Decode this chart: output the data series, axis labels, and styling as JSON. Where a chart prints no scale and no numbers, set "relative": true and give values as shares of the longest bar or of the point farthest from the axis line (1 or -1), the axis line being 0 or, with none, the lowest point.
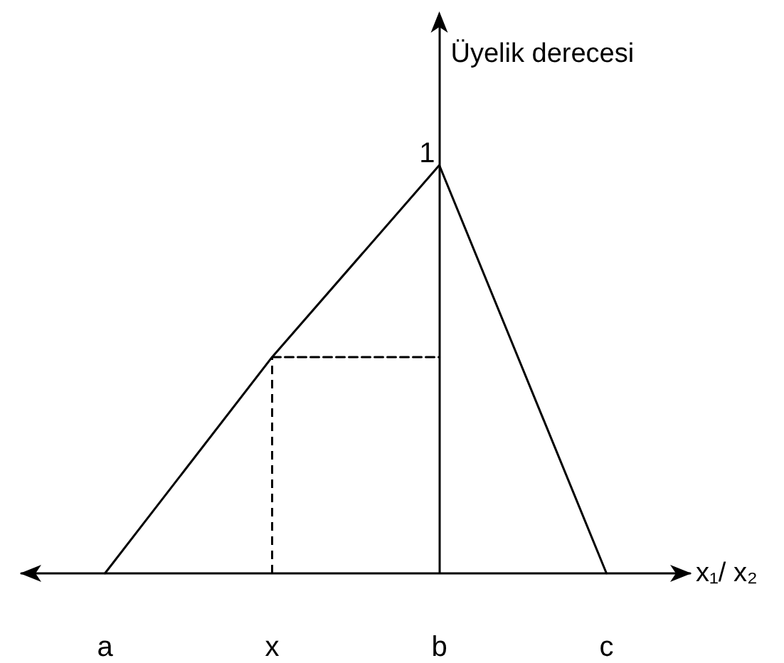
{
  "chart_data": {
    "type": "line",
    "relative": true,
    "ylabel": "Üyelik derecesi",
    "xlabel": "x₁/ x₂",
    "categories": [
      "a",
      "x",
      "b",
      "c"
    ],
    "series": [
      {
        "color": "#000000",
        "values": [
          0,
          0.53,
          1,
          0
        ],
        "line_style": "solid"
      },
      {
        "color": "#000000",
        "values": [
          null,
          0.53,
          0.53,
          null
        ],
        "line_style": "dashed"
      }
    ],
    "ref_lines": [
      {
        "axis": "x",
        "value": "b",
        "color": "#000000"
      }
    ],
    "annotations": [
      {
        "text": "1",
        "x": "b",
        "y": 1
      }
    ],
    "tick_labels": "x",
    "grid": false,
    "marker": "none"
  }
}
